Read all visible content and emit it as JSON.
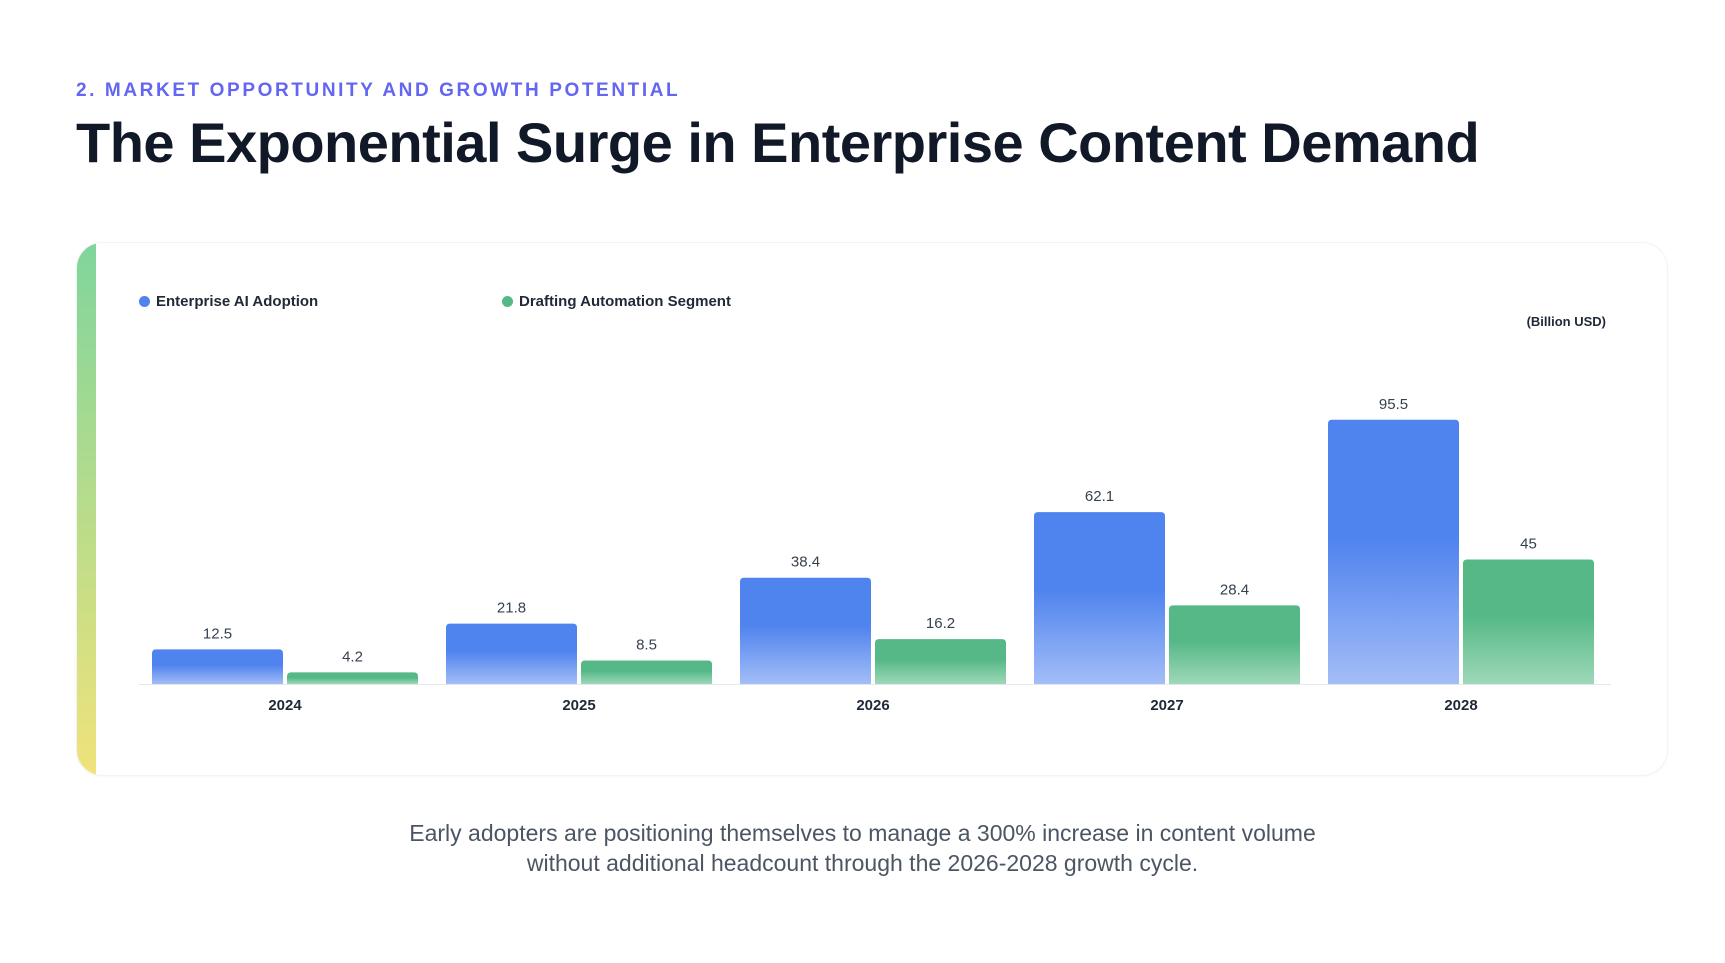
{
  "header": {
    "eyebrow": "2. MARKET OPPORTUNITY AND GROWTH POTENTIAL",
    "title": "The Exponential Surge in Enterprise Content Demand"
  },
  "colors": {
    "eyebrow": "#6366f1",
    "series_1": "#4f83ee",
    "series_1_light": "#a3bdf7",
    "series_2": "#55b886",
    "series_2_light": "#9ed8b9",
    "accent_top": "#7fd59c",
    "accent_bottom": "#f0e37a"
  },
  "chart_data": {
    "type": "bar",
    "unit_label": "(Billion USD)",
    "categories": [
      "2024",
      "2025",
      "2026",
      "2027",
      "2028"
    ],
    "series": [
      {
        "name": "Enterprise AI Adoption",
        "color": "#4f83ee",
        "values": [
          12.5,
          21.8,
          38.4,
          62.1,
          95.5
        ]
      },
      {
        "name": "Drafting Automation Segment",
        "color": "#55b886",
        "values": [
          4.2,
          8.5,
          16.2,
          28.4,
          45
        ]
      }
    ],
    "ylim": [
      0,
      100
    ],
    "grid": false,
    "legend": "top-left"
  },
  "footnote": {
    "line1": "Early adopters are positioning themselves to manage a 300% increase in content volume",
    "line2": "without additional headcount through the 2026-2028 growth cycle."
  }
}
